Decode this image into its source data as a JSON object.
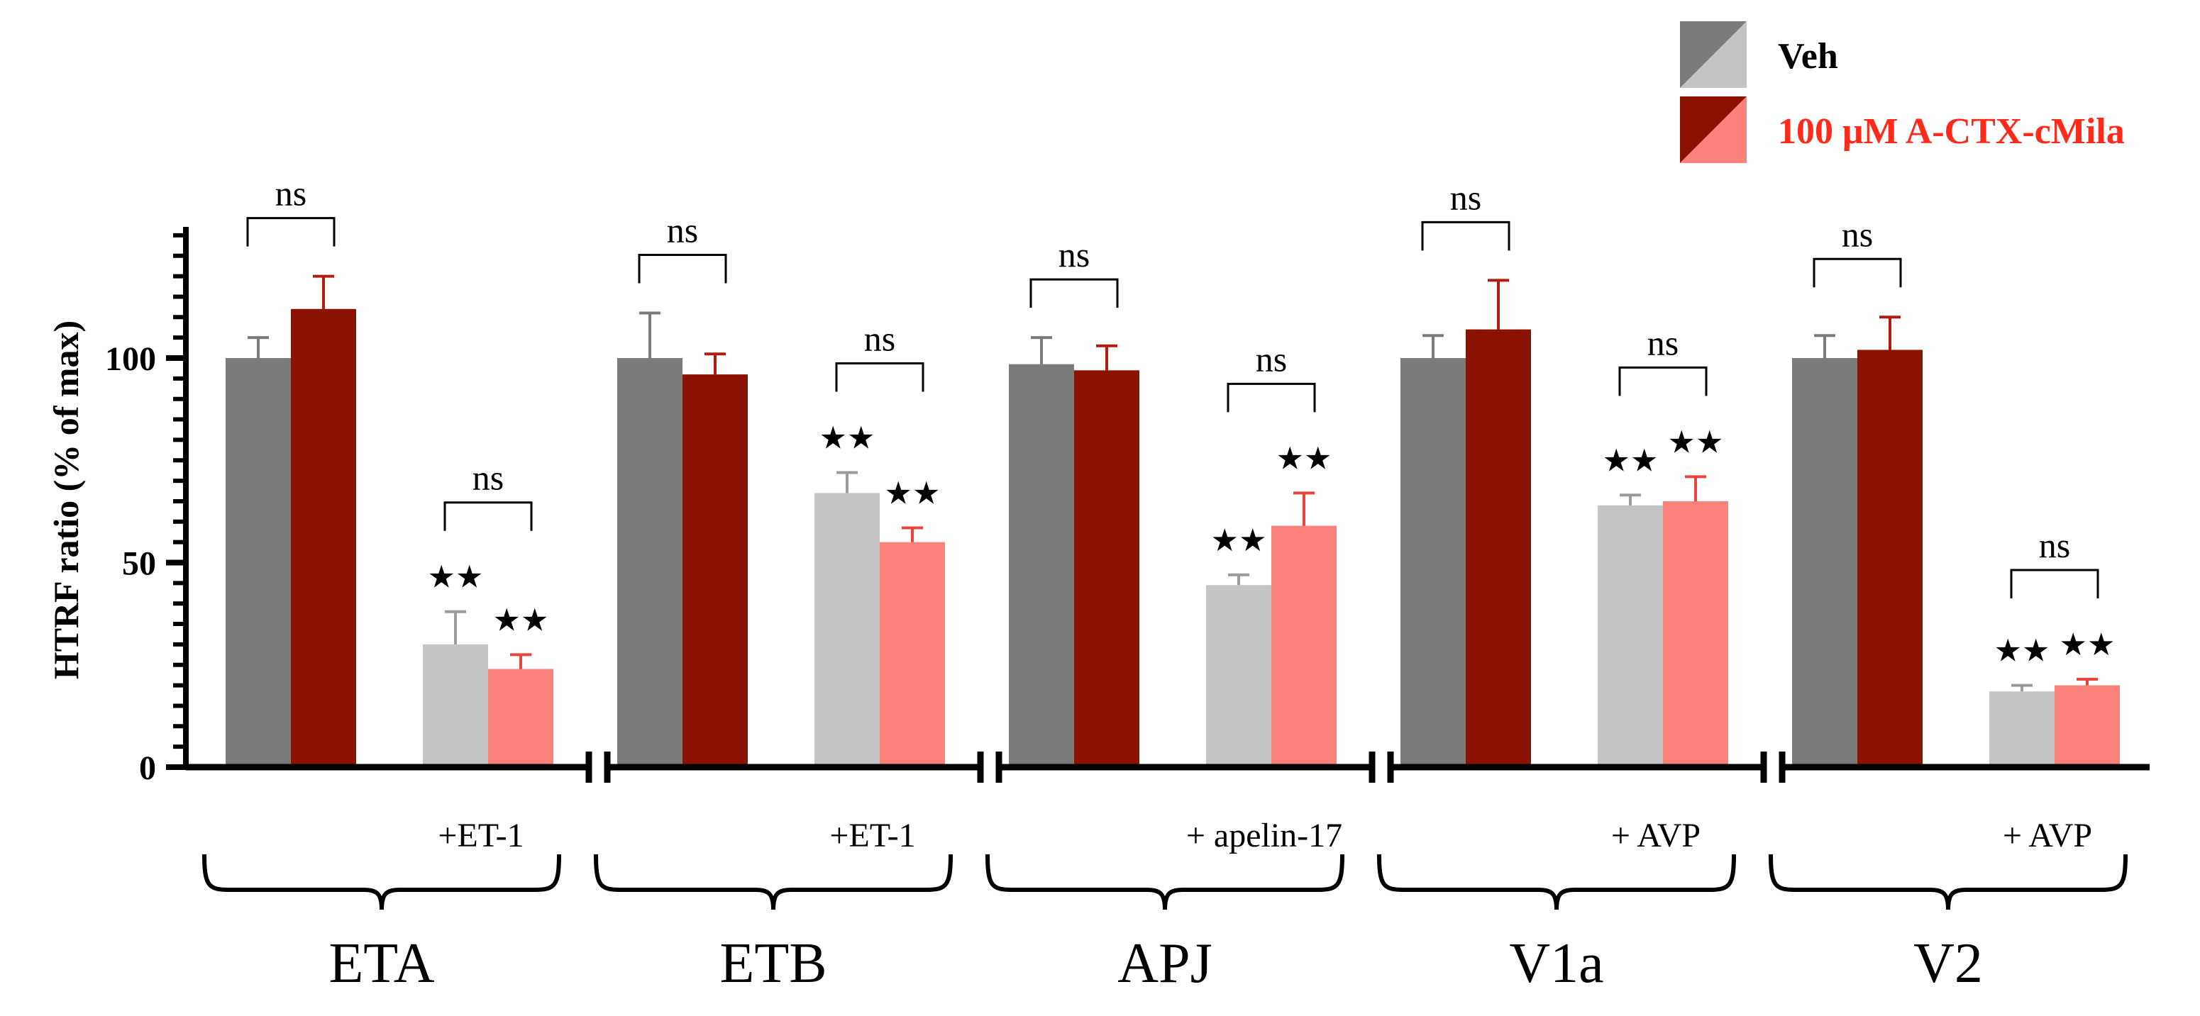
{
  "chart_data": {
    "type": "bar",
    "ylabel": "HTRF ratio (% of max)",
    "ylim": [
      0,
      130
    ],
    "yticks": [
      0,
      50,
      100
    ],
    "legend": {
      "placement": "top-right",
      "entries": [
        {
          "name": "Veh",
          "dark": "#7a7a7a",
          "light": "#c4c4c4",
          "text_color": "#000000"
        },
        {
          "name": "100 μM A-CTX-cMila",
          "dark": "#8b1200",
          "light": "#fb827b",
          "text_color": "#ff2a1a"
        }
      ]
    },
    "groups": [
      {
        "receptor": "ETA",
        "stimulus": "+ET-1",
        "bars": [
          {
            "condition": "basal",
            "treatment": "Veh",
            "value": 100,
            "err": 5,
            "stars": ""
          },
          {
            "condition": "basal",
            "treatment": "100 μM A-CTX-cMila",
            "value": 112,
            "err": 8,
            "stars": ""
          },
          {
            "condition": "stimulated",
            "treatment": "Veh",
            "value": 30,
            "err": 8,
            "stars": "★★"
          },
          {
            "condition": "stimulated",
            "treatment": "100 μM A-CTX-cMila",
            "value": 24,
            "err": 3.5,
            "stars": "★★"
          }
        ],
        "comparisons": [
          {
            "pair": "basal",
            "label": "ns"
          },
          {
            "pair": "stimulated",
            "label": "ns"
          }
        ]
      },
      {
        "receptor": "ETB",
        "stimulus": "+ET-1",
        "bars": [
          {
            "condition": "basal",
            "treatment": "Veh",
            "value": 100,
            "err": 11,
            "stars": ""
          },
          {
            "condition": "basal",
            "treatment": "100 μM A-CTX-cMila",
            "value": 96,
            "err": 5,
            "stars": ""
          },
          {
            "condition": "stimulated",
            "treatment": "Veh",
            "value": 67,
            "err": 5,
            "stars": "★★"
          },
          {
            "condition": "stimulated",
            "treatment": "100 μM A-CTX-cMila",
            "value": 55,
            "err": 3.5,
            "stars": "★★"
          }
        ],
        "comparisons": [
          {
            "pair": "basal",
            "label": "ns"
          },
          {
            "pair": "stimulated",
            "label": "ns"
          }
        ]
      },
      {
        "receptor": "APJ",
        "stimulus": "+ apelin-17",
        "bars": [
          {
            "condition": "basal",
            "treatment": "Veh",
            "value": 98.5,
            "err": 6.5,
            "stars": ""
          },
          {
            "condition": "basal",
            "treatment": "100 μM A-CTX-cMila",
            "value": 97,
            "err": 6,
            "stars": ""
          },
          {
            "condition": "stimulated",
            "treatment": "Veh",
            "value": 44.5,
            "err": 2.5,
            "stars": "★★"
          },
          {
            "condition": "stimulated",
            "treatment": "100 μM A-CTX-cMila",
            "value": 59,
            "err": 8,
            "stars": "★★"
          }
        ],
        "comparisons": [
          {
            "pair": "basal",
            "label": "ns"
          },
          {
            "pair": "stimulated",
            "label": "ns"
          }
        ]
      },
      {
        "receptor": "V1a",
        "stimulus": "+ AVP",
        "bars": [
          {
            "condition": "basal",
            "treatment": "Veh",
            "value": 100,
            "err": 5.5,
            "stars": ""
          },
          {
            "condition": "basal",
            "treatment": "100 μM A-CTX-cMila",
            "value": 107,
            "err": 12,
            "stars": ""
          },
          {
            "condition": "stimulated",
            "treatment": "Veh",
            "value": 64,
            "err": 2.5,
            "stars": "★★"
          },
          {
            "condition": "stimulated",
            "treatment": "100 μM A-CTX-cMila",
            "value": 65,
            "err": 6,
            "stars": "★★"
          }
        ],
        "comparisons": [
          {
            "pair": "basal",
            "label": "ns"
          },
          {
            "pair": "stimulated",
            "label": "ns"
          }
        ]
      },
      {
        "receptor": "V2",
        "stimulus": "+ AVP",
        "bars": [
          {
            "condition": "basal",
            "treatment": "Veh",
            "value": 100,
            "err": 5.5,
            "stars": ""
          },
          {
            "condition": "basal",
            "treatment": "100 μM A-CTX-cMila",
            "value": 102,
            "err": 8,
            "stars": ""
          },
          {
            "condition": "stimulated",
            "treatment": "Veh",
            "value": 18.5,
            "err": 1.5,
            "stars": "★★"
          },
          {
            "condition": "stimulated",
            "treatment": "100 μM A-CTX-cMila",
            "value": 20,
            "err": 1.5,
            "stars": "★★"
          }
        ],
        "comparisons": [
          {
            "pair": "basal",
            "label": "ns"
          },
          {
            "pair": "stimulated",
            "label": "ns"
          }
        ]
      }
    ]
  }
}
